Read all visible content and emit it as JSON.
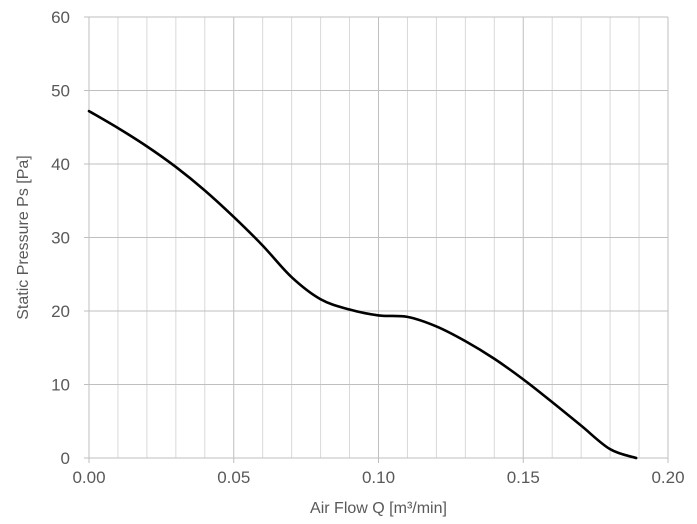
{
  "chart_data": {
    "type": "line",
    "xlabel": "Air Flow Q [m³/min]",
    "ylabel": "Static Pressure Ps [Pa]",
    "xlim": [
      0,
      0.2
    ],
    "ylim": [
      0,
      60
    ],
    "x_ticks": [
      "0.00",
      "0.05",
      "0.10",
      "0.15",
      "0.20"
    ],
    "y_ticks": [
      "0",
      "10",
      "20",
      "30",
      "40",
      "50",
      "60"
    ],
    "x_minor_step": 0.01,
    "y_major_step": 10,
    "grid": true,
    "legend": "none",
    "colors": {
      "line": "#000000",
      "grid_major": "#bfbfbf",
      "grid_minor": "#d9d9d9",
      "axis": "#bfbfbf",
      "text": "#595959"
    },
    "series": [
      {
        "x": [
          0.0,
          0.01,
          0.02,
          0.03,
          0.04,
          0.05,
          0.06,
          0.07,
          0.08,
          0.09,
          0.1,
          0.11,
          0.12,
          0.13,
          0.14,
          0.15,
          0.16,
          0.17,
          0.18,
          0.189
        ],
        "y": [
          47.2,
          44.9,
          42.4,
          39.6,
          36.4,
          32.8,
          28.9,
          24.6,
          21.6,
          20.2,
          19.4,
          19.2,
          17.9,
          15.9,
          13.5,
          10.7,
          7.6,
          4.4,
          1.2,
          0.0
        ]
      }
    ]
  }
}
